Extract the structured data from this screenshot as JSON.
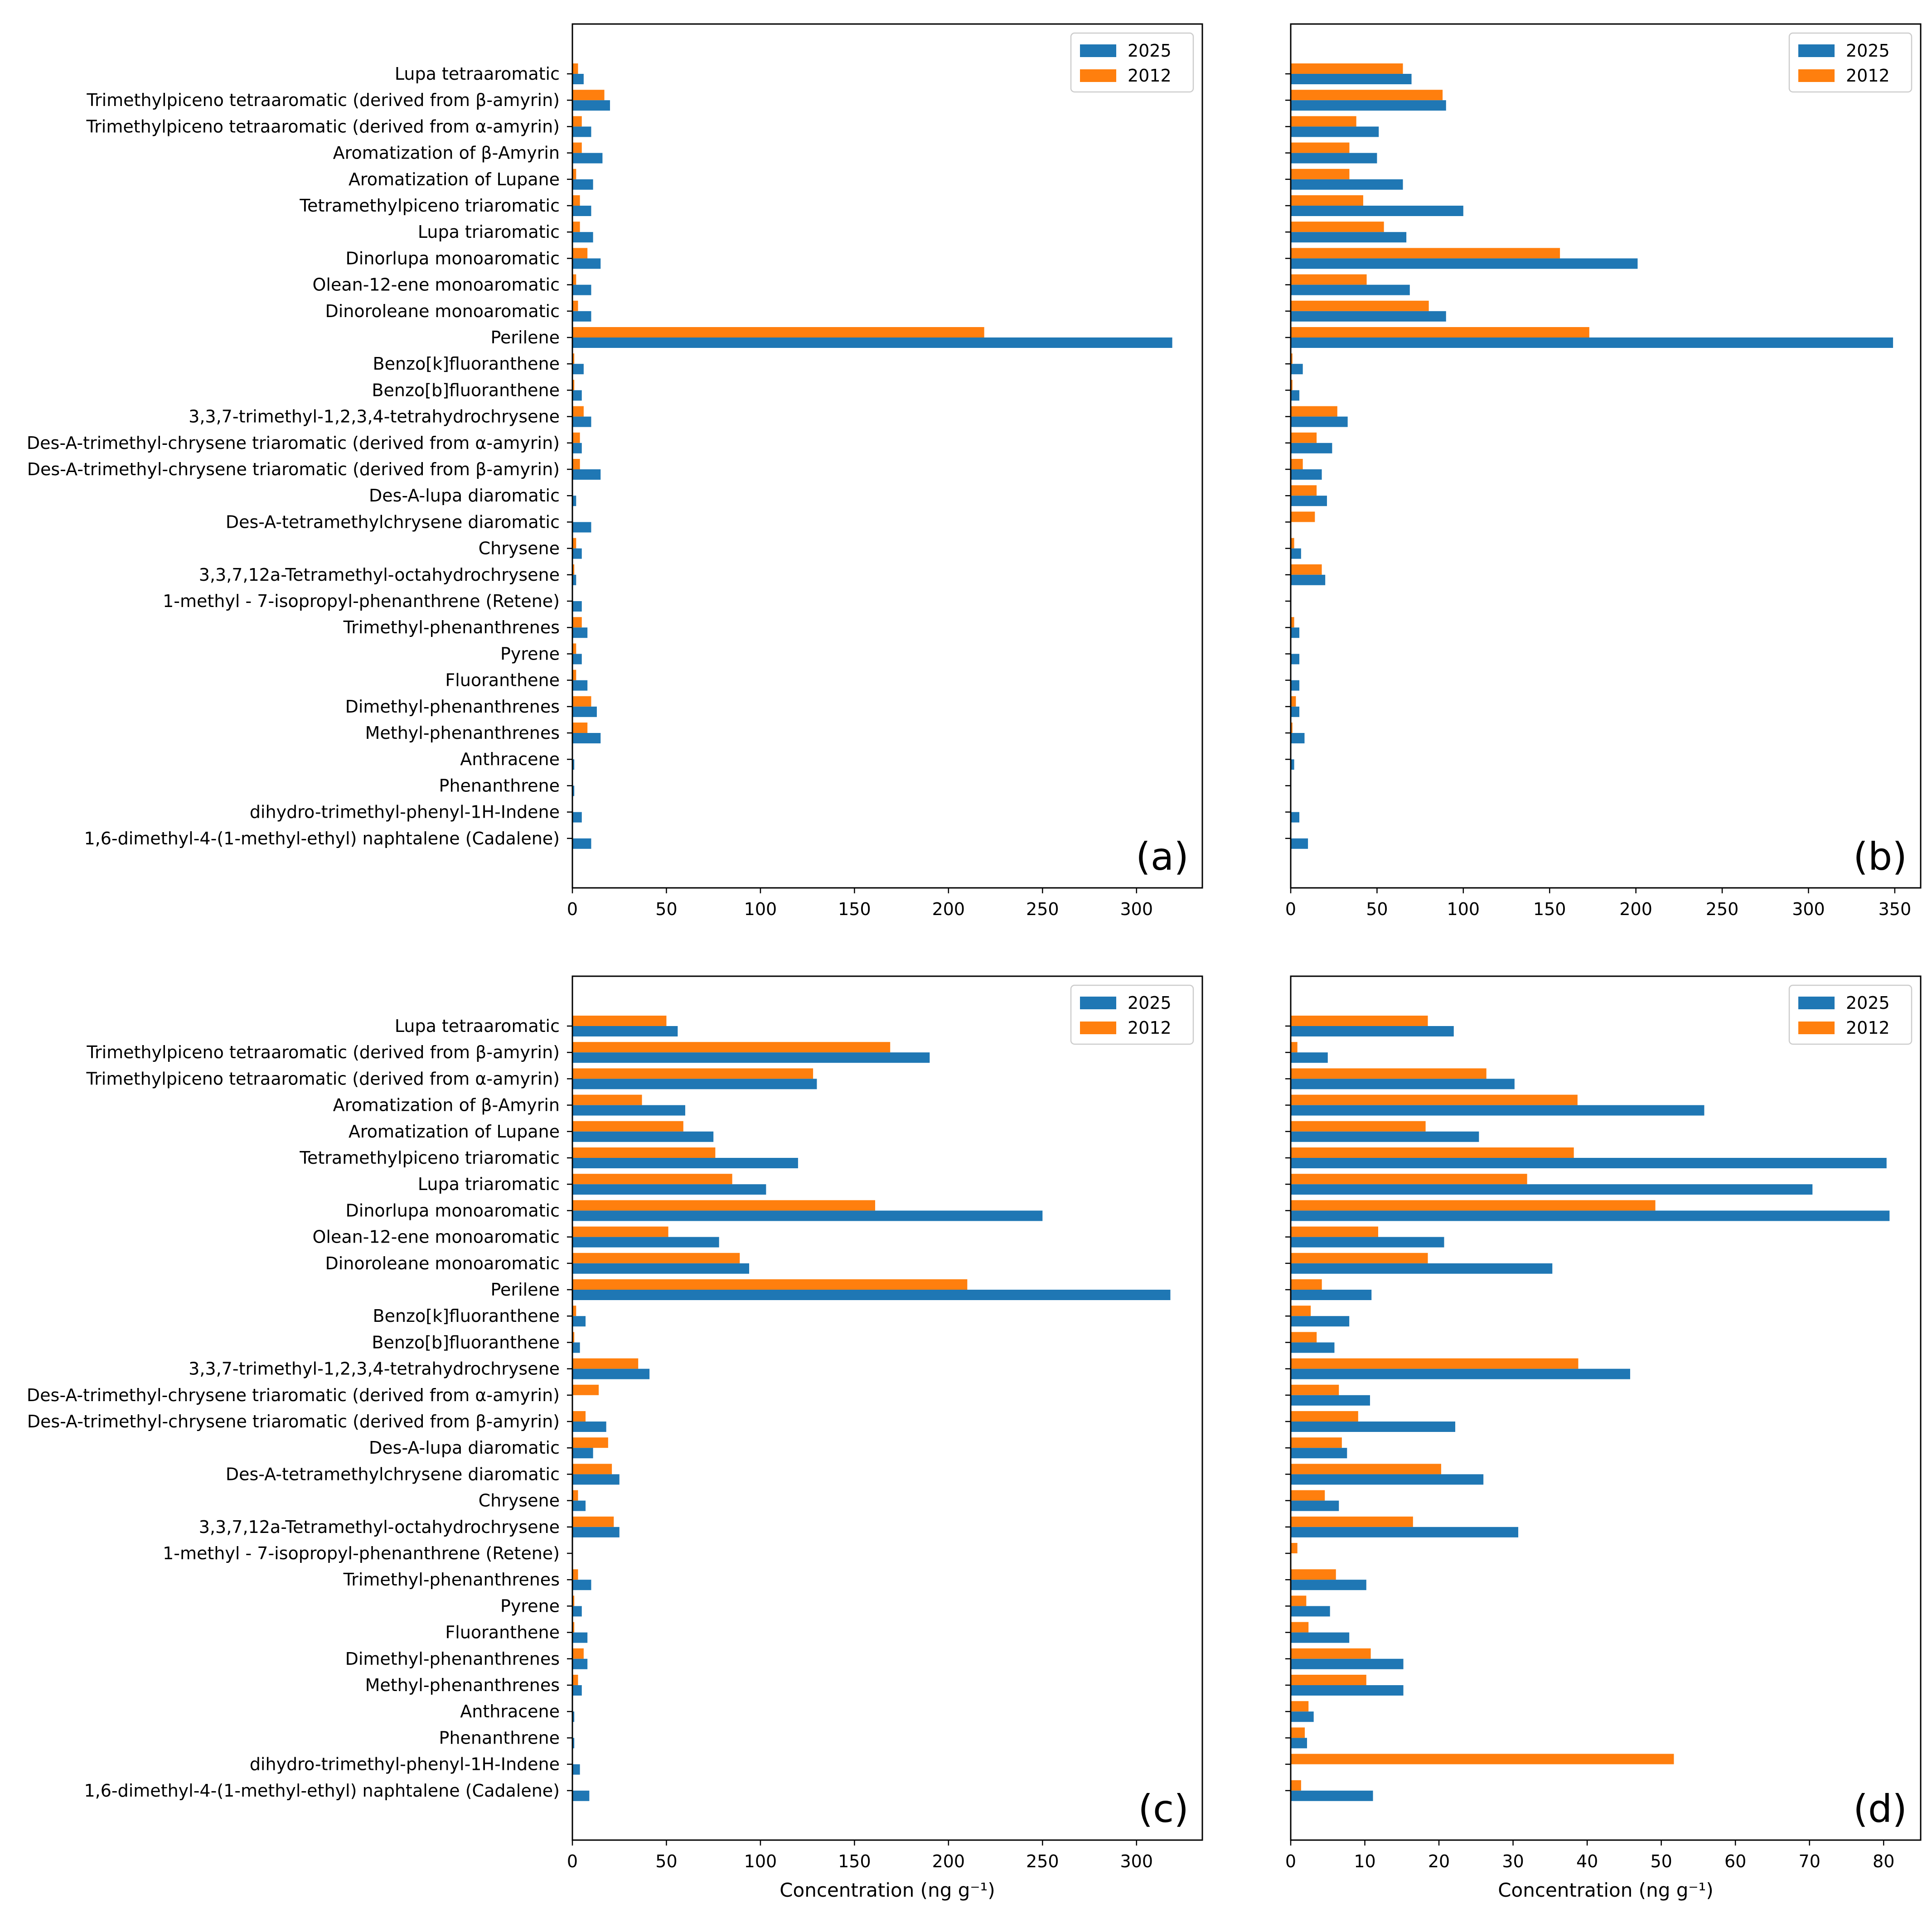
{
  "categories": [
    "Lupa tetraaromatic",
    "Trimethylpiceno tetraaromatic (derived from β-amyrin)",
    "Trimethylpiceno tetraaromatic (derived from α-amyrin)",
    "Aromatization of  β-Amyrin",
    "Aromatization of  Lupane",
    "Tetramethylpiceno triaromatic",
    "Lupa triaromatic",
    "Dinorlupa monoaromatic",
    "Olean-12-ene monoaromatic",
    "Dinoroleane monoaromatic",
    "Perilene",
    "Benzo[k]fluoranthene",
    "Benzo[b]fluoranthene",
    "3,3,7-trimethyl-1,2,3,4-tetrahydrochrysene",
    "Des-A-trimethyl-chrysene triaromatic (derived from α-amyrin)",
    "Des-A-trimethyl-chrysene triaromatic (derived from β-amyrin)",
    "Des-A-lupa diaromatic",
    "Des-A-tetramethylchrysene diaromatic",
    "Chrysene",
    "3,3,7,12a-Tetramethyl-octahydrochrysene",
    "1-methyl - 7-isopropyl-phenanthrene (Retene)",
    "Trimethyl-phenanthrenes",
    "Pyrene",
    "Fluoranthene",
    "Dimethyl-phenanthrenes",
    "Methyl-phenanthrenes",
    "Anthracene",
    "Phenanthrene",
    "dihydro-trimethyl-phenyl-1H-Indene",
    "1,6-dimethyl-4-(1-methyl-ethyl) naphtalene (Cadalene)"
  ],
  "colors": {
    "y2025": "#1f77b4",
    "y2012": "#ff7f0e"
  },
  "legend": {
    "y2025": "2025",
    "y2012": "2012"
  },
  "chart_data": [
    {
      "type": "bar",
      "orientation": "horizontal",
      "panel_label": "(a)",
      "xlabel": "",
      "xlim": [
        0,
        335
      ],
      "xticks": [
        0,
        50,
        100,
        150,
        200,
        250,
        300
      ],
      "legend_position": "top-right",
      "series": [
        {
          "name": "2025",
          "values": [
            6,
            20,
            10,
            16,
            11,
            10,
            11,
            15,
            10,
            10,
            319,
            6,
            5,
            10,
            5,
            15,
            2,
            10,
            5,
            2,
            5,
            8,
            5,
            8,
            13,
            15,
            1,
            1,
            5,
            10
          ]
        },
        {
          "name": "2012",
          "values": [
            3,
            17,
            5,
            5,
            2,
            4,
            4,
            8,
            2,
            3,
            219,
            1,
            1,
            6,
            4,
            4,
            0,
            0,
            2,
            1,
            0,
            5,
            2,
            2,
            10,
            8,
            0,
            0,
            0,
            0
          ]
        }
      ]
    },
    {
      "type": "bar",
      "orientation": "horizontal",
      "panel_label": "(b)",
      "xlabel": "",
      "xlim": [
        0,
        365
      ],
      "xticks": [
        0,
        50,
        100,
        150,
        200,
        250,
        300,
        350
      ],
      "legend_position": "top-right",
      "series": [
        {
          "name": "2025",
          "values": [
            70,
            90,
            51,
            50,
            65,
            100,
            67,
            201,
            69,
            90,
            349,
            7,
            5,
            33,
            24,
            18,
            21,
            0,
            6,
            20,
            0,
            5,
            5,
            5,
            5,
            8,
            2,
            0,
            5,
            10
          ]
        },
        {
          "name": "2012",
          "values": [
            65,
            88,
            38,
            34,
            34,
            42,
            54,
            156,
            44,
            80,
            173,
            1,
            1,
            27,
            15,
            7,
            15,
            14,
            2,
            18,
            0,
            2,
            0,
            0,
            3,
            1,
            0,
            0,
            0,
            0
          ]
        }
      ]
    },
    {
      "type": "bar",
      "orientation": "horizontal",
      "panel_label": "(c)",
      "xlabel": "Concentration (ng g⁻¹)",
      "xlim": [
        0,
        335
      ],
      "xticks": [
        0,
        50,
        100,
        150,
        200,
        250,
        300
      ],
      "legend_position": "top-right",
      "series": [
        {
          "name": "2025",
          "values": [
            56,
            190,
            130,
            60,
            75,
            120,
            103,
            250,
            78,
            94,
            318,
            7,
            4,
            41,
            0,
            18,
            11,
            25,
            7,
            25,
            0,
            10,
            5,
            8,
            8,
            5,
            1,
            1,
            4,
            9
          ]
        },
        {
          "name": "2012",
          "values": [
            50,
            169,
            128,
            37,
            59,
            76,
            85,
            161,
            51,
            89,
            210,
            2,
            1,
            35,
            14,
            7,
            19,
            21,
            3,
            22,
            0,
            3,
            1,
            1,
            6,
            3,
            0,
            0,
            0,
            0
          ]
        }
      ]
    },
    {
      "type": "bar",
      "orientation": "horizontal",
      "panel_label": "(d)",
      "xlabel": "Concentration (ng g⁻¹)",
      "xlim": [
        0,
        85
      ],
      "xticks": [
        0,
        10,
        20,
        30,
        40,
        50,
        60,
        70,
        80
      ],
      "legend_position": "top-right",
      "series": [
        {
          "name": "2025",
          "values": [
            22,
            5,
            30.2,
            55.8,
            25.4,
            80.4,
            70.4,
            80.8,
            20.7,
            35.3,
            10.9,
            7.9,
            5.9,
            45.8,
            10.7,
            22.2,
            7.6,
            26,
            6.5,
            30.7,
            0,
            10.2,
            5.3,
            7.9,
            15.2,
            15.2,
            3.1,
            2.2,
            0,
            11.1
          ]
        },
        {
          "name": "2012",
          "values": [
            18.5,
            0.9,
            26.4,
            38.7,
            18.2,
            38.2,
            31.9,
            49.2,
            11.8,
            18.5,
            4.2,
            2.7,
            3.5,
            38.8,
            6.5,
            9.1,
            6.9,
            20.3,
            4.6,
            16.5,
            0.9,
            6.1,
            2.1,
            2.4,
            10.8,
            10.2,
            2.4,
            1.9,
            51.7,
            1.4
          ]
        }
      ]
    }
  ]
}
